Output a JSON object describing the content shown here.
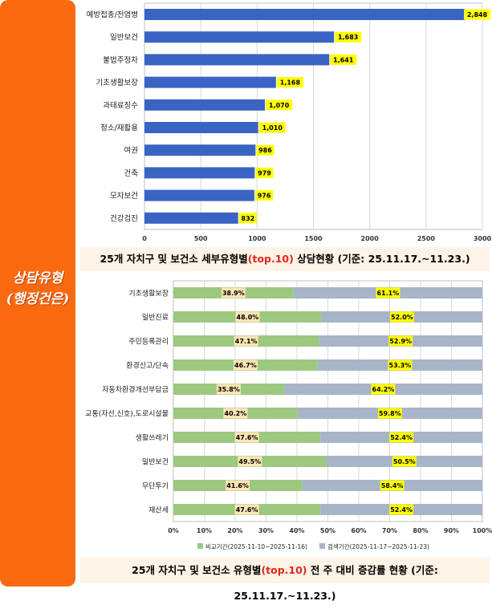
{
  "sidebar": {
    "line1": "상담유형",
    "line2": "(행정건은)"
  },
  "chart_data": [
    {
      "type": "bar",
      "orientation": "horizontal",
      "categories": [
        "예방접종/전염병",
        "일반보건",
        "불법주정차",
        "기초생활보장",
        "과태료징수",
        "청소/재활용",
        "여권",
        "건축",
        "모자보건",
        "건강검진"
      ],
      "values": [
        2848,
        1683,
        1641,
        1168,
        1070,
        1010,
        986,
        979,
        976,
        832
      ],
      "data_labels": [
        "2,848",
        "1,683",
        "1,641",
        "1,168",
        "1,070",
        "1,010",
        "986",
        "979",
        "976",
        "832"
      ],
      "xlim": [
        0,
        3000
      ],
      "xticks": [
        0,
        500,
        1000,
        1500,
        2000,
        2500,
        3000
      ],
      "grid": "vertical",
      "colors": {
        "bar": "#3a64c4",
        "label_bg": "#ffff00"
      },
      "caption": {
        "pre": "25개 자치구 및 보건소 세부유형별",
        "highlight": "(top.10)",
        "post": " 상담현황  (기준: 25.11.17.~11.23.)"
      }
    },
    {
      "type": "bar",
      "orientation": "horizontal",
      "stacked": "percent",
      "categories": [
        "기초생활보장",
        "일반진료",
        "주민등록관리",
        "환경신고/단속",
        "자동차환경개선부담금",
        "교통(자선,신호),도로시설물",
        "생활쓰레기",
        "일반보건",
        "무단투기",
        "재산세"
      ],
      "series": [
        {
          "name": "비교기간(2025-11-10~2025-11-16)",
          "values": [
            38.9,
            48.0,
            47.1,
            46.7,
            35.8,
            40.2,
            47.6,
            49.5,
            41.6,
            47.6
          ],
          "labels": [
            "38.9%",
            "48.0%",
            "47.1%",
            "46.7%",
            "35.8%",
            "40.2%",
            "47.6%",
            "49.5%",
            "41.6%",
            "47.6%"
          ],
          "color": "#9cc97e",
          "label_bg": "#fbe4b6"
        },
        {
          "name": "검색기간(2025-11-17~2025-11-23)",
          "values": [
            61.1,
            52.0,
            52.9,
            53.3,
            64.2,
            59.8,
            52.4,
            50.5,
            58.4,
            52.4
          ],
          "labels": [
            "61.1%",
            "52.0%",
            "52.9%",
            "53.3%",
            "64.2%",
            "59.8%",
            "52.4%",
            "50.5%",
            "58.4%",
            "52.4%"
          ],
          "color": "#a8b4c8",
          "label_bg": "#ffff00"
        }
      ],
      "xlim": [
        0,
        100
      ],
      "xticks": [
        "0%",
        "10%",
        "20%",
        "30%",
        "40%",
        "50%",
        "60%",
        "70%",
        "80%",
        "90%",
        "100%"
      ],
      "legend": "bottom",
      "grid": "vertical",
      "caption": {
        "pre": "25개 자치구 및 보건소 유형별",
        "highlight": "(top.10)",
        "post": " 전 주 대비 증감률 현황 (기준: 25.11.17.~11.23.)"
      }
    }
  ]
}
